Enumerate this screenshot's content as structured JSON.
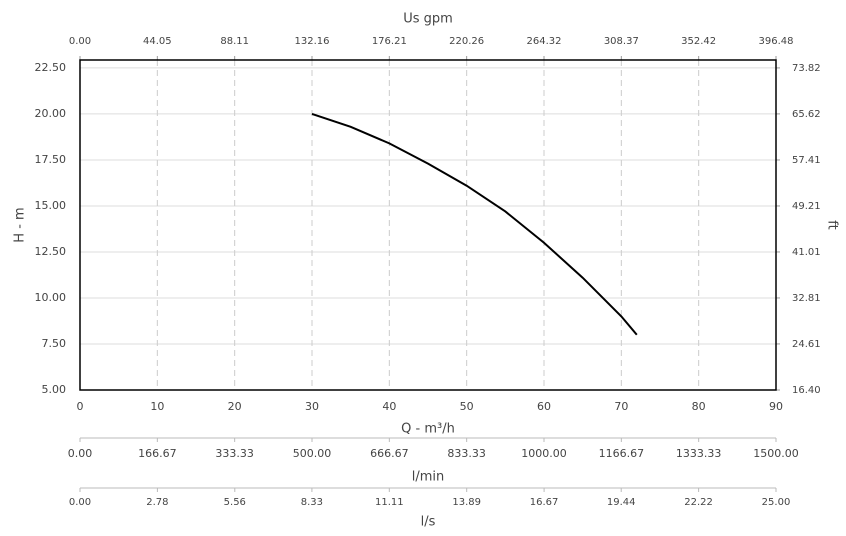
{
  "chart_data": {
    "type": "line",
    "x": [
      30,
      35,
      40,
      45,
      50,
      55,
      60,
      65,
      70,
      72
    ],
    "series": [
      {
        "color": "#000000",
        "values": [
          20.0,
          19.3,
          18.4,
          17.3,
          16.1,
          14.7,
          13.0,
          11.1,
          9.0,
          8.0
        ]
      }
    ],
    "xlabel": "Q - m³/h",
    "xlim": [
      0,
      90
    ],
    "xticks": [
      0,
      10,
      20,
      30,
      40,
      50,
      60,
      70,
      80,
      90
    ],
    "ylabel": "H - m",
    "ylim": [
      5,
      22.93
    ],
    "yticks": [
      {
        "value": 5,
        "label": "5.00"
      },
      {
        "value": 7.5,
        "label": "7.50"
      },
      {
        "value": 10,
        "label": "10.00"
      },
      {
        "value": 12.5,
        "label": "12.50"
      },
      {
        "value": 15,
        "label": "15.00"
      },
      {
        "value": 17.5,
        "label": "17.50"
      },
      {
        "value": 20,
        "label": "20.00"
      },
      {
        "value": 22.5,
        "label": "22.50"
      }
    ],
    "y2label": "ft",
    "y2lim": [
      16.4,
      75.23
    ],
    "y2ticks": [
      {
        "value": 16.4,
        "label": "16.40"
      },
      24.61,
      32.81,
      41.01,
      49.21,
      57.41,
      65.62,
      73.82
    ],
    "grid": true,
    "top_axis": {
      "label": "Us gpm",
      "lim": [
        0,
        396.48
      ],
      "ticks": [
        {
          "value": 0,
          "label": "0.00"
        },
        44.05,
        88.11,
        132.16,
        176.21,
        220.26,
        264.32,
        308.37,
        352.42,
        396.48
      ]
    },
    "extra_axes": [
      {
        "label": "l/min",
        "lim": [
          0,
          1500
        ],
        "ticks": [
          {
            "value": 0,
            "label": "0.00"
          },
          166.67,
          333.33,
          {
            "value": 500,
            "label": "500.00"
          },
          666.67,
          833.33,
          {
            "value": 1000,
            "label": "1000.00"
          },
          1166.67,
          1333.33,
          {
            "value": 1500,
            "label": "1500.00"
          }
        ]
      },
      {
        "label": "l/s",
        "lim": [
          0,
          25
        ],
        "ticks": [
          {
            "value": 0,
            "label": "0.00"
          },
          2.78,
          5.56,
          8.33,
          11.11,
          13.89,
          16.67,
          19.44,
          22.22,
          {
            "value": 25,
            "label": "25.00"
          }
        ]
      }
    ]
  }
}
